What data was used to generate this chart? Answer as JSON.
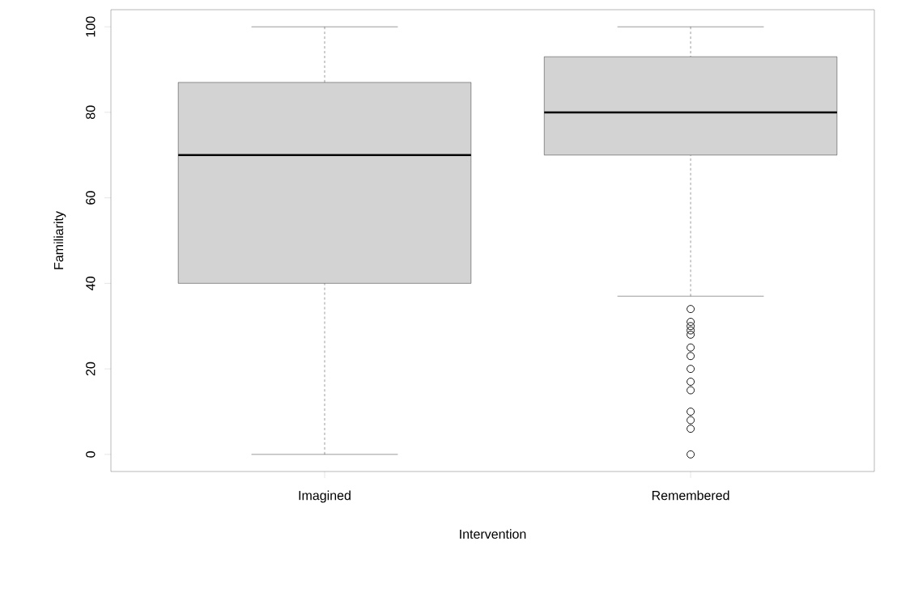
{
  "chart_data": {
    "type": "box",
    "xlabel": "Intervention",
    "ylabel": "Familiarity",
    "categories": [
      "Imagined",
      "Remembered"
    ],
    "boxes": [
      {
        "low": 0,
        "q1": 40,
        "median": 70,
        "q3": 87,
        "high": 100
      },
      {
        "low": 37,
        "q1": 70,
        "median": 80,
        "q3": 93,
        "high": 100,
        "outliers": [
          34,
          31,
          30,
          29,
          28,
          25,
          23,
          20,
          17,
          15,
          10,
          8,
          6,
          0
        ]
      }
    ],
    "color": "#d3d3d3",
    "marker": "circle",
    "ylim": [
      -4,
      104
    ],
    "yticks": [
      0,
      20,
      40,
      60,
      80,
      100
    ]
  }
}
